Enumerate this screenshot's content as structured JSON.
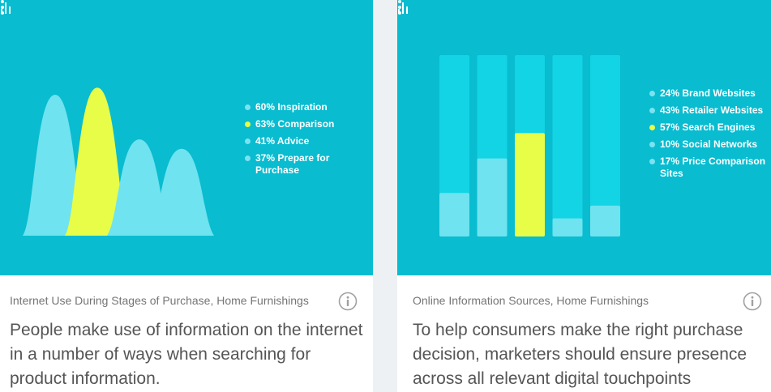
{
  "colors": {
    "panel_bg": "#09bcd0",
    "light_series": "#6fe3ef",
    "highlight": "#e8fd47",
    "bar_track": "#12d4e4",
    "legend_dot": "#7be3f0",
    "highlight_dot": "#e8fd47"
  },
  "icons": {
    "chart_icon": "bar-chart-icon",
    "menu_icon": "more-vert-icon",
    "info_icon": "info-icon"
  },
  "cards": [
    {
      "subtitle": "Internet Use During Stages of Purchase, Home Furnishings",
      "headline": "People make use of information on the internet in a number of ways when searching for product information.",
      "legend": [
        "60% Inspiration",
        "63% Comparison",
        "41% Advice",
        "37% Prepare for Purchase"
      ]
    },
    {
      "subtitle": "Online Information Sources, Home Furnishings",
      "headline": "To help consumers make the right purchase decision, marketers should ensure presence across all relevant digital touchpoints",
      "legend": [
        "24% Brand Websites",
        "43% Retailer Websites",
        "57% Search Engines",
        "10% Social Networks",
        "17% Price Comparison Sites"
      ]
    }
  ],
  "chart_data": [
    {
      "type": "area",
      "categories": [
        "Inspiration",
        "Comparison",
        "Advice",
        "Prepare for Purchase"
      ],
      "values": [
        60,
        63,
        41,
        37
      ],
      "unit": "%",
      "highlighted": "Comparison",
      "legend_position": "right"
    },
    {
      "type": "bar",
      "categories": [
        "Brand Websites",
        "Retailer Websites",
        "Search Engines",
        "Social Networks",
        "Price Comparison Sites"
      ],
      "values": [
        24,
        43,
        57,
        10,
        17
      ],
      "unit": "%",
      "highlighted": "Search Engines",
      "legend_position": "right"
    }
  ]
}
